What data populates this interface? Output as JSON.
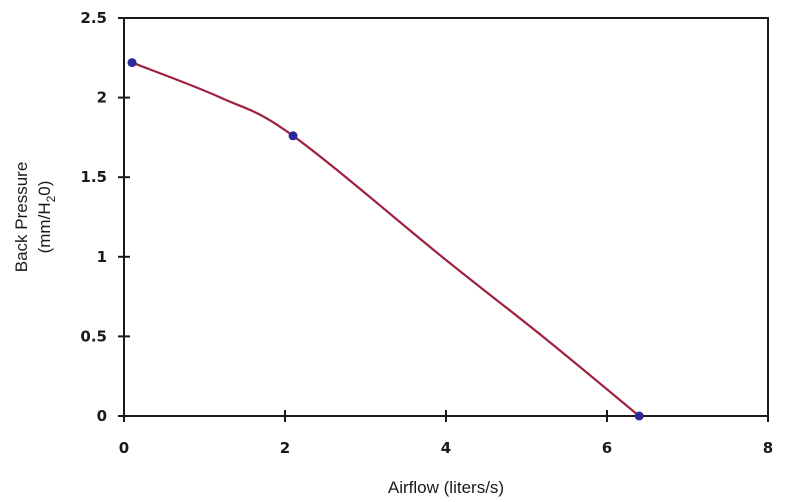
{
  "chart_data": {
    "type": "line",
    "title": "",
    "xlabel": "Airflow (liters/s)",
    "ylabel_line1": "Back Pressure",
    "ylabel_line2": {
      "prefix": "(mm/H",
      "subscript": "2",
      "suffix": "0)"
    },
    "xlim": [
      0,
      8
    ],
    "ylim": [
      0,
      2.5
    ],
    "x_ticks": [
      0,
      2,
      4,
      6,
      8
    ],
    "x_tick_labels": [
      "0",
      "2",
      "4",
      "6",
      "8"
    ],
    "y_ticks": [
      0,
      0.5,
      1,
      1.5,
      2,
      2.5
    ],
    "y_tick_labels": [
      "0",
      "0.5",
      "1",
      "1.5",
      "2",
      "2.5"
    ],
    "grid": false,
    "series": [
      {
        "points": [
          {
            "x": 0.1,
            "y": 2.22
          },
          {
            "x": 2.1,
            "y": 1.76
          },
          {
            "x": 6.4,
            "y": 0.0
          }
        ],
        "curve": [
          {
            "x": 0.1,
            "y": 2.22
          },
          {
            "x": 1.2,
            "y": 2.0
          },
          {
            "x": 2.1,
            "y": 1.76
          },
          {
            "x": 4.0,
            "y": 0.98
          },
          {
            "x": 5.2,
            "y": 0.5
          },
          {
            "x": 6.4,
            "y": 0.0
          }
        ],
        "line_color": "#a0213f",
        "marker_color": "#2a2a9a"
      }
    ]
  }
}
